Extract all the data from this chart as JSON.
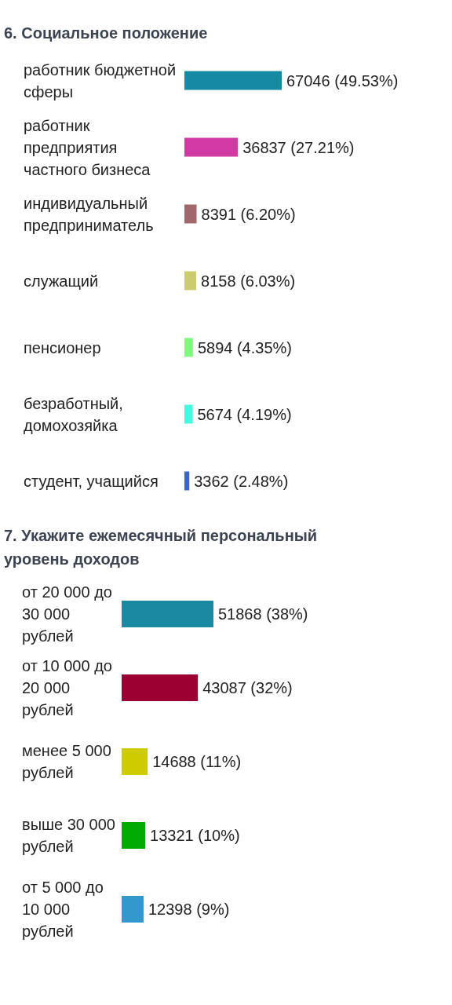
{
  "chart_data": [
    {
      "type": "bar",
      "orientation": "horizontal",
      "title": "6. Социальное положение",
      "categories": [
        "работник бюджетной сферы",
        "работник предприятия частного бизнеса",
        "индивидуальный предприниматель",
        "служащий",
        "пенсионер",
        "безработный, домохозяйка",
        "студент, учащийся"
      ],
      "values": [
        67046,
        36837,
        8391,
        8158,
        5894,
        5674,
        3362
      ],
      "colors": [
        "#168aa3",
        "#d03aa2",
        "#a0686a",
        "#cccc6e",
        "#80f880",
        "#40ffe0",
        "#3b66cc"
      ],
      "value_labels": [
        "67046 (49.53%)",
        "36837 (27.21%)",
        "8391 (6.20%)",
        "8158 (6.03%)",
        "5894 (4.35%)",
        "5674 (4.19%)",
        "3362 (2.48%)"
      ]
    },
    {
      "type": "bar",
      "orientation": "horizontal",
      "title": "7. Укажите ежемесячный персональный уровень доходов",
      "categories": [
        "от 20 000 до 30 000 рублей",
        "от 10 000 до 20 000 рублей",
        "менее 5 000 рублей",
        "выше 30 000 рублей",
        "от 5 000 до 10 000 рублей"
      ],
      "values": [
        51868,
        43087,
        14688,
        13321,
        12398
      ],
      "colors": [
        "#1a8aa3",
        "#9c0033",
        "#cccc00",
        "#00aa00",
        "#3399cc"
      ],
      "value_labels": [
        "51868 (38%)",
        "43087 (32%)",
        "14688 (11%)",
        "13321 (10%)",
        "12398 (9%)"
      ]
    }
  ]
}
